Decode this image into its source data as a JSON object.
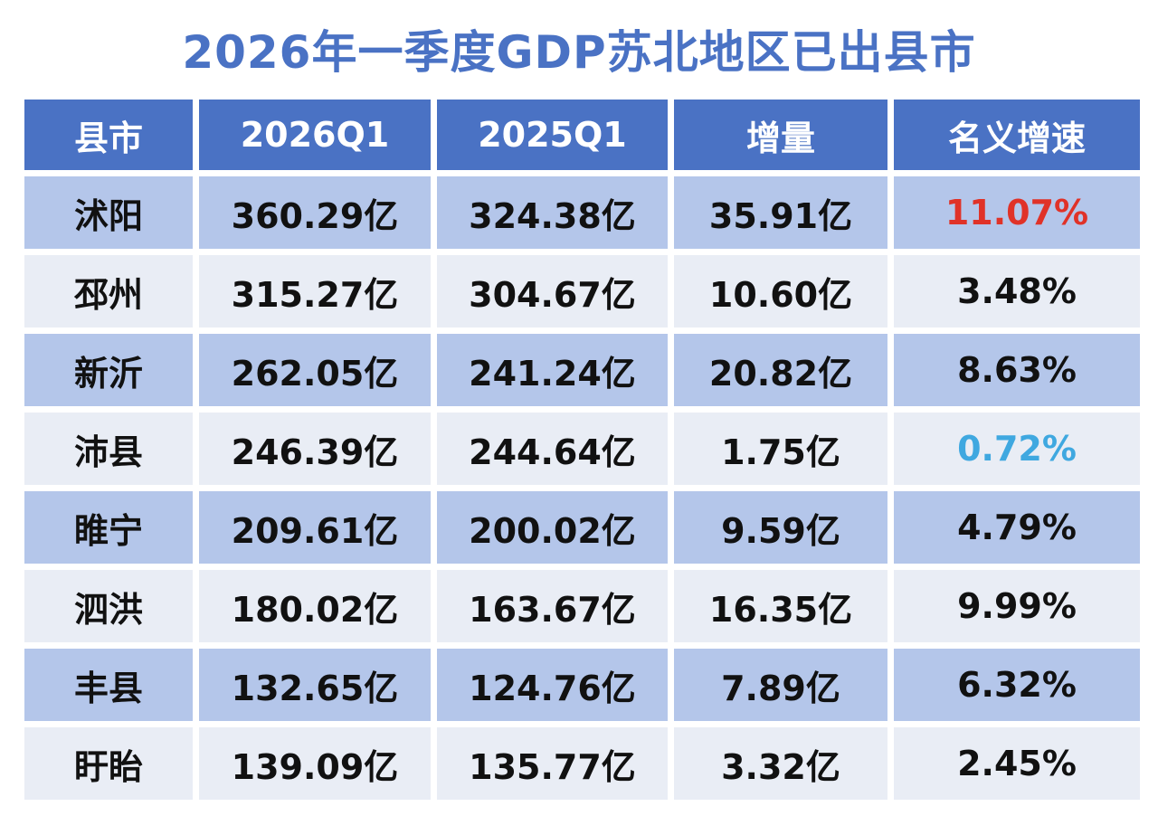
{
  "header": {
    "title": "2026年一季度GDP苏北地区已出县市"
  },
  "table": {
    "columns": [
      "县市",
      "2026Q1",
      "2025Q1",
      "增量",
      "名义增速"
    ],
    "rows": [
      [
        "沭阳",
        "360.29亿",
        "324.38亿",
        "35.91亿",
        "11.07%"
      ],
      [
        "邳州",
        "315.27亿",
        "304.67亿",
        "10.60亿",
        "3.48%"
      ],
      [
        "新沂",
        "262.05亿",
        "241.24亿",
        "20.82亿",
        "8.63%"
      ],
      [
        "沛县",
        "246.39亿",
        "244.64亿",
        "1.75亿",
        "0.72%"
      ],
      [
        "睢宁",
        "209.61亿",
        "200.02亿",
        "9.59亿",
        "4.79%"
      ],
      [
        "泗洪",
        "180.02亿",
        "163.67亿",
        "16.35亿",
        "9.99%"
      ],
      [
        "丰县",
        "132.65亿",
        "124.76亿",
        "7.89亿",
        "6.32%"
      ],
      [
        "盱眙",
        "139.09亿",
        "135.77亿",
        "3.32亿",
        "2.45%"
      ]
    ]
  }
}
